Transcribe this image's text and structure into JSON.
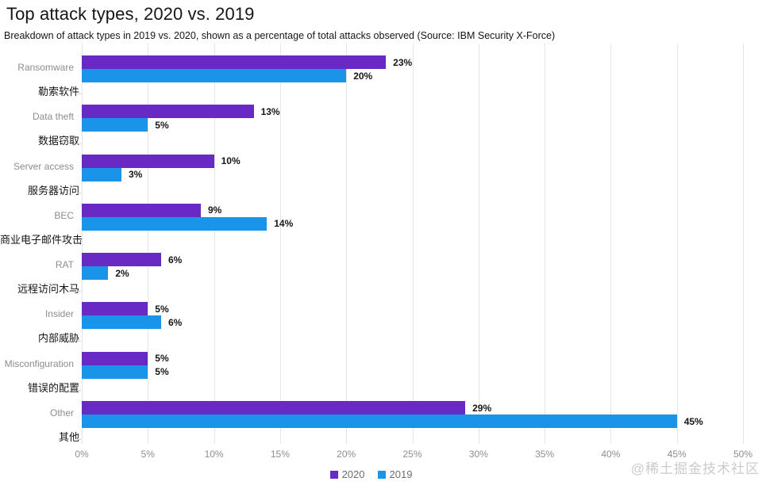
{
  "header": {
    "title": "Top attack types, 2020 vs. 2019",
    "subtitle": "Breakdown of attack types in 2019 vs. 2020, shown as a percentage of total attacks observed (Source: IBM Security X-Force)"
  },
  "chart_data": {
    "type": "bar",
    "orientation": "horizontal",
    "title": "Top attack types, 2020 vs. 2019",
    "categories": [
      {
        "en": "Ransomware",
        "zh": "勒索软件"
      },
      {
        "en": "Data theft",
        "zh": "数据窃取"
      },
      {
        "en": "Server access",
        "zh": "服务器访问"
      },
      {
        "en": "BEC",
        "zh": "商业电子邮件攻击"
      },
      {
        "en": "RAT",
        "zh": "远程访问木马"
      },
      {
        "en": "Insider",
        "zh": "内部威胁"
      },
      {
        "en": "Misconfiguration",
        "zh": "错误的配置"
      },
      {
        "en": "Other",
        "zh": "其他"
      }
    ],
    "series": [
      {
        "name": "2020",
        "color": "#6929c4",
        "values": [
          23,
          13,
          10,
          9,
          6,
          5,
          5,
          29
        ]
      },
      {
        "name": "2019",
        "color": "#1a94e8",
        "values": [
          20,
          5,
          3,
          14,
          2,
          6,
          5,
          45
        ]
      }
    ],
    "value_suffix": "%",
    "xlim": [
      0,
      50
    ],
    "x_ticks": [
      "0%",
      "5%",
      "10%",
      "15%",
      "20%",
      "25%",
      "30%",
      "35%",
      "40%",
      "45%",
      "50%"
    ],
    "grid": true,
    "legend_position": "bottom"
  },
  "watermark": "@稀土掘金技术社区"
}
